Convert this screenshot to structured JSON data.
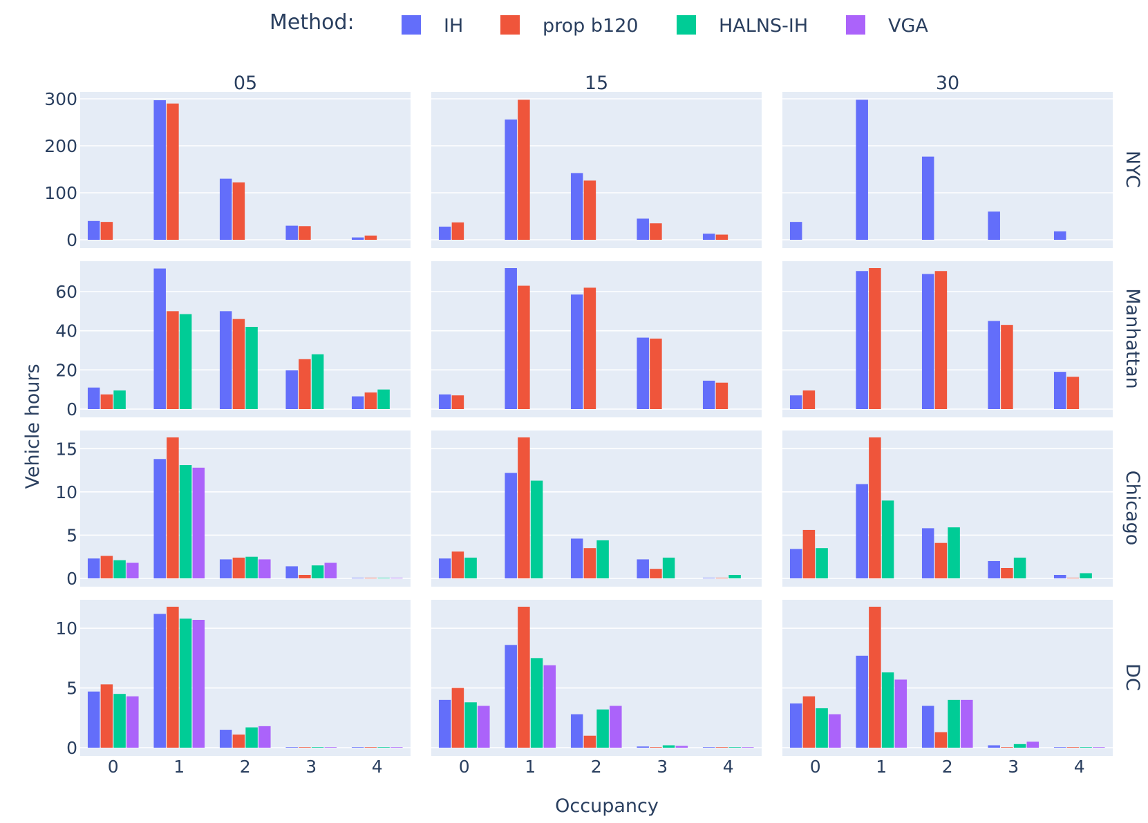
{
  "chart_data": {
    "type": "bar",
    "layout": "facet-grid",
    "legend": {
      "title": "Method:",
      "placement": "top-center",
      "items": [
        {
          "name": "IH",
          "color": "#636efa"
        },
        {
          "name": "prop b120",
          "color": "#ef553b"
        },
        {
          "name": "HALNS-IH",
          "color": "#00cc96"
        },
        {
          "name": "VGA",
          "color": "#ab63fa"
        }
      ]
    },
    "xlabel": "Occupancy",
    "ylabel": "Vehicle hours",
    "categories": [
      "0",
      "1",
      "2",
      "3",
      "4"
    ],
    "column_labels": [
      "05",
      "15",
      "30"
    ],
    "row_labels": [
      "NYC",
      "Manhattan",
      "Chicago",
      "DC"
    ],
    "background": "#e5ecf6",
    "grid": true,
    "rows": [
      {
        "name": "NYC",
        "ylim": [
          0,
          300
        ],
        "yticks": [
          0,
          100,
          200,
          300
        ],
        "panels": [
          {
            "column": "05",
            "series": [
              {
                "name": "IH",
                "values": [
                  40,
                  297,
                  130,
                  30,
                  5
                ]
              },
              {
                "name": "prop b120",
                "values": [
                  38,
                  290,
                  122,
                  29,
                  9
                ]
              },
              {
                "name": "HALNS-IH",
                "values": [
                  0,
                  0,
                  0,
                  0,
                  0
                ]
              },
              {
                "name": "VGA",
                "values": [
                  0,
                  0,
                  0,
                  0,
                  0
                ]
              }
            ]
          },
          {
            "column": "15",
            "series": [
              {
                "name": "IH",
                "values": [
                  28,
                  256,
                  142,
                  45,
                  13
                ]
              },
              {
                "name": "prop b120",
                "values": [
                  37,
                  298,
                  126,
                  35,
                  11
                ]
              },
              {
                "name": "HALNS-IH",
                "values": [
                  0,
                  0,
                  0,
                  0,
                  0
                ]
              },
              {
                "name": "VGA",
                "values": [
                  0,
                  0,
                  0,
                  0,
                  0
                ]
              }
            ]
          },
          {
            "column": "30",
            "series": [
              {
                "name": "IH",
                "values": [
                  38,
                  298,
                  177,
                  60,
                  18
                ]
              },
              {
                "name": "prop b120",
                "values": [
                  0,
                  0,
                  0,
                  0,
                  0
                ]
              },
              {
                "name": "HALNS-IH",
                "values": [
                  0,
                  0,
                  0,
                  0,
                  0
                ]
              },
              {
                "name": "VGA",
                "values": [
                  0,
                  0,
                  0,
                  0,
                  0
                ]
              }
            ]
          }
        ]
      },
      {
        "name": "Manhattan",
        "ylim": [
          0,
          72
        ],
        "yticks": [
          0,
          20,
          40,
          60
        ],
        "panels": [
          {
            "column": "05",
            "series": [
              {
                "name": "IH",
                "values": [
                  11,
                  71.8,
                  50,
                  19.8,
                  6.5
                ]
              },
              {
                "name": "prop b120",
                "values": [
                  7.5,
                  50,
                  46,
                  25.5,
                  8.5
                ]
              },
              {
                "name": "HALNS-IH",
                "values": [
                  9.5,
                  48.5,
                  42,
                  28,
                  10
                ]
              },
              {
                "name": "VGA",
                "values": [
                  0,
                  0,
                  0,
                  0,
                  0
                ]
              }
            ]
          },
          {
            "column": "15",
            "series": [
              {
                "name": "IH",
                "values": [
                  7.5,
                  72,
                  58.5,
                  36.5,
                  14.5
                ]
              },
              {
                "name": "prop b120",
                "values": [
                  7,
                  63,
                  62,
                  36,
                  13.5
                ]
              },
              {
                "name": "HALNS-IH",
                "values": [
                  0,
                  0,
                  0,
                  0,
                  0
                ]
              },
              {
                "name": "VGA",
                "values": [
                  0,
                  0,
                  0,
                  0,
                  0
                ]
              }
            ]
          },
          {
            "column": "30",
            "series": [
              {
                "name": "IH",
                "values": [
                  7,
                  70.5,
                  69,
                  45,
                  19
                ]
              },
              {
                "name": "prop b120",
                "values": [
                  9.5,
                  72,
                  70.5,
                  43,
                  16.5
                ]
              },
              {
                "name": "HALNS-IH",
                "values": [
                  0,
                  0,
                  0,
                  0,
                  0
                ]
              },
              {
                "name": "VGA",
                "values": [
                  0,
                  0,
                  0,
                  0,
                  0
                ]
              }
            ]
          }
        ]
      },
      {
        "name": "Chicago",
        "ylim": [
          0,
          16.3
        ],
        "yticks": [
          0,
          5,
          10,
          15
        ],
        "panels": [
          {
            "column": "05",
            "series": [
              {
                "name": "IH",
                "values": [
                  2.3,
                  13.8,
                  2.2,
                  1.4,
                  0.05
                ]
              },
              {
                "name": "prop b120",
                "values": [
                  2.6,
                  16.3,
                  2.4,
                  0.4,
                  0.05
                ]
              },
              {
                "name": "HALNS-IH",
                "values": [
                  2.1,
                  13.1,
                  2.5,
                  1.5,
                  0.05
                ]
              },
              {
                "name": "VGA",
                "values": [
                  1.8,
                  12.8,
                  2.2,
                  1.8,
                  0.02
                ]
              }
            ]
          },
          {
            "column": "15",
            "series": [
              {
                "name": "IH",
                "values": [
                  2.3,
                  12.2,
                  4.6,
                  2.2,
                  0.05
                ]
              },
              {
                "name": "prop b120",
                "values": [
                  3.1,
                  16.3,
                  3.5,
                  1.1,
                  0.05
                ]
              },
              {
                "name": "HALNS-IH",
                "values": [
                  2.4,
                  11.3,
                  4.4,
                  2.4,
                  0.4
                ]
              },
              {
                "name": "VGA",
                "values": [
                  0,
                  0,
                  0,
                  0,
                  0
                ]
              }
            ]
          },
          {
            "column": "30",
            "series": [
              {
                "name": "IH",
                "values": [
                  3.4,
                  10.9,
                  5.8,
                  2.0,
                  0.4
                ]
              },
              {
                "name": "prop b120",
                "values": [
                  5.6,
                  16.3,
                  4.1,
                  1.2,
                  0.05
                ]
              },
              {
                "name": "HALNS-IH",
                "values": [
                  3.5,
                  9.0,
                  5.9,
                  2.4,
                  0.6
                ]
              },
              {
                "name": "VGA",
                "values": [
                  0,
                  0,
                  0,
                  0,
                  0
                ]
              }
            ]
          }
        ]
      },
      {
        "name": "DC",
        "ylim": [
          0,
          11.8
        ],
        "yticks": [
          0,
          5,
          10
        ],
        "panels": [
          {
            "column": "05",
            "series": [
              {
                "name": "IH",
                "values": [
                  4.7,
                  11.2,
                  1.5,
                  0.02,
                  0.02
                ]
              },
              {
                "name": "prop b120",
                "values": [
                  5.3,
                  11.8,
                  1.1,
                  0.02,
                  0.02
                ]
              },
              {
                "name": "HALNS-IH",
                "values": [
                  4.5,
                  10.8,
                  1.7,
                  0.02,
                  0.02
                ]
              },
              {
                "name": "VGA",
                "values": [
                  4.3,
                  10.7,
                  1.8,
                  0.02,
                  0.02
                ]
              }
            ]
          },
          {
            "column": "15",
            "series": [
              {
                "name": "IH",
                "values": [
                  4.0,
                  8.6,
                  2.8,
                  0.1,
                  0.02
                ]
              },
              {
                "name": "prop b120",
                "values": [
                  5.0,
                  11.8,
                  1.0,
                  0.02,
                  0.02
                ]
              },
              {
                "name": "HALNS-IH",
                "values": [
                  3.8,
                  7.5,
                  3.2,
                  0.2,
                  0.02
                ]
              },
              {
                "name": "VGA",
                "values": [
                  3.5,
                  6.9,
                  3.5,
                  0.15,
                  0.02
                ]
              }
            ]
          },
          {
            "column": "30",
            "series": [
              {
                "name": "IH",
                "values": [
                  3.7,
                  7.7,
                  3.5,
                  0.2,
                  0.02
                ]
              },
              {
                "name": "prop b120",
                "values": [
                  4.3,
                  11.8,
                  1.3,
                  0.02,
                  0.02
                ]
              },
              {
                "name": "HALNS-IH",
                "values": [
                  3.3,
                  6.3,
                  4.0,
                  0.3,
                  0.02
                ]
              },
              {
                "name": "VGA",
                "values": [
                  2.8,
                  5.7,
                  4.0,
                  0.5,
                  0.02
                ]
              }
            ]
          }
        ]
      }
    ]
  }
}
